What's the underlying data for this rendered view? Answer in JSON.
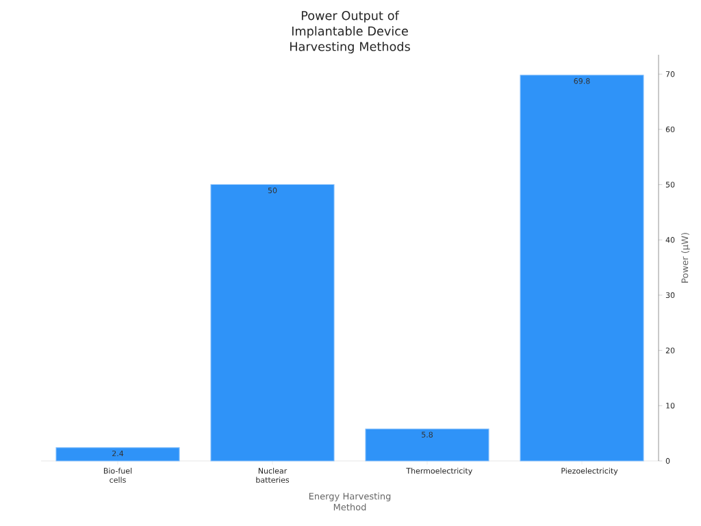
{
  "chart_data": {
    "type": "bar",
    "title": "Power Output of Implantable Device Harvesting Methods",
    "categories": [
      "Bio-fuel cells",
      "Nuclear batteries",
      "Thermoelectricity",
      "Piezoelectricity"
    ],
    "values": [
      2.4,
      50,
      5.8,
      69.8
    ],
    "color": "#2f93f8",
    "xlabel": "Energy Harvesting Method",
    "ylabel": "Power (μW)",
    "ylim": [
      0,
      73.5
    ],
    "yticks": [
      0,
      10,
      20,
      30,
      40,
      50,
      60,
      70
    ],
    "data_labels": true,
    "grid": false
  }
}
